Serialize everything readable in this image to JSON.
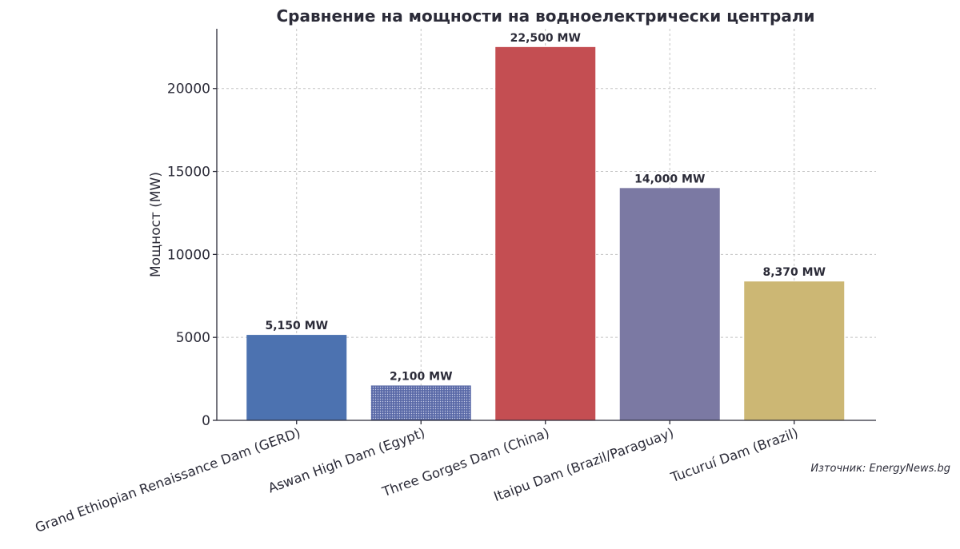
{
  "chart_data": {
    "type": "bar",
    "title": "Сравнение на мощности на водноелектрически централи",
    "xlabel": "",
    "ylabel": "Мощност (MW)",
    "ylim": [
      0,
      23600
    ],
    "yticks": [
      0,
      5000,
      10000,
      15000,
      20000
    ],
    "grid": true,
    "categories": [
      "Grand Ethiopian Renaissance Dam (GERD)",
      "Aswan High Dam (Egypt)",
      "Three Gorges Dam (China)",
      "Itaipu Dam (Brazil/Paraguay)",
      "Tucuruí Dam (Brazil)"
    ],
    "values": [
      5150,
      2100,
      22500,
      14000,
      8370
    ],
    "data_labels": [
      "5,150 MW",
      "2,100 MW",
      "22,500 MW",
      "14,000 MW",
      "8,370 MW"
    ],
    "colors": [
      "#4c72b0",
      "#5a6aa8",
      "#c44e52",
      "#7b79a3",
      "#ccb774"
    ],
    "hatched_bar": "Aswan High Dam (Egypt)"
  },
  "source_note": "Източник: EnergyNews.bg"
}
